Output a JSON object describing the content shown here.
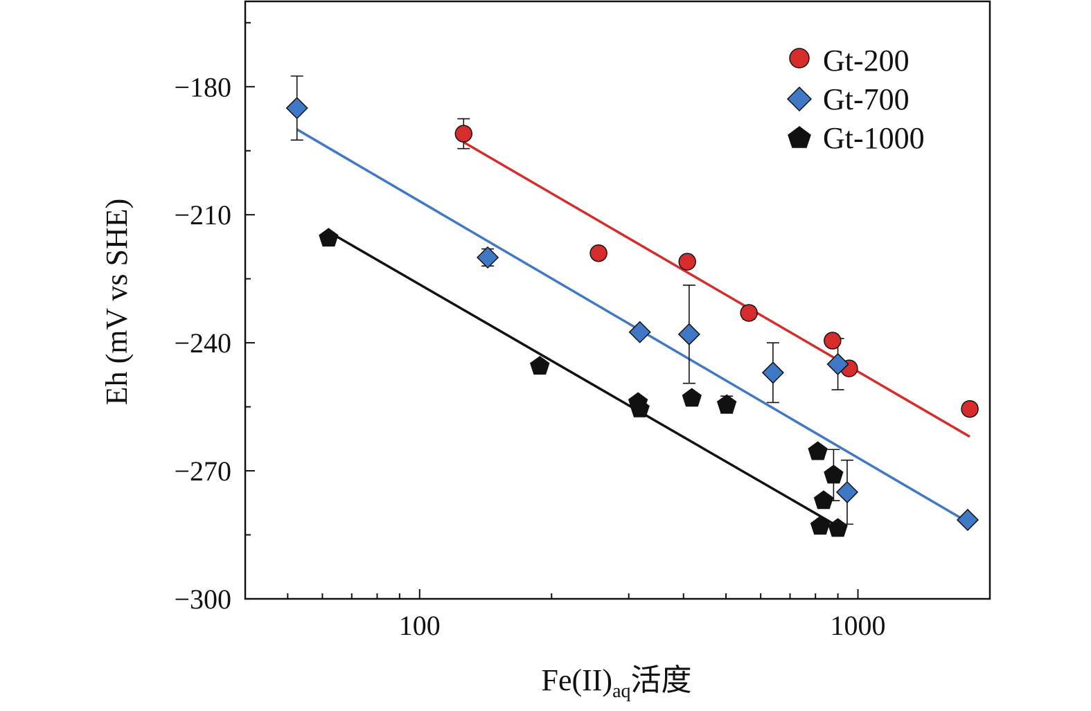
{
  "chart_data": {
    "type": "scatter",
    "x_scale": "log",
    "xlabel": {
      "main": "Fe(II)",
      "sub": "aq",
      "suffix": "活度"
    },
    "ylabel": "Eh (mV vs SHE)",
    "xlim": [
      40,
      2000
    ],
    "ylim": [
      -300,
      -160
    ],
    "x_ticks": [
      {
        "value": 100,
        "label": "100"
      },
      {
        "value": 1000,
        "label": "1000"
      }
    ],
    "y_ticks": [
      {
        "value": -180,
        "label": "−180"
      },
      {
        "value": -210,
        "label": "−210"
      },
      {
        "value": -240,
        "label": "−240"
      },
      {
        "value": -270,
        "label": "−270"
      },
      {
        "value": -300,
        "label": "−300"
      }
    ],
    "legend_position": "top-right",
    "series": [
      {
        "name": "Gt-200",
        "color": "#d62c2c",
        "marker": "circle",
        "points": [
          {
            "x": 126,
            "y": -191,
            "err": 3.5
          },
          {
            "x": 256,
            "y": -219,
            "err": 1
          },
          {
            "x": 408,
            "y": -221,
            "err": 1
          },
          {
            "x": 564,
            "y": -233,
            "err": 1.5
          },
          {
            "x": 875,
            "y": -239.5,
            "err": 1
          },
          {
            "x": 955,
            "y": -246,
            "err": 1
          },
          {
            "x": 1800,
            "y": -255.5,
            "err": 1
          }
        ],
        "fit": {
          "x": [
            126,
            1800
          ],
          "y": [
            -193,
            -262
          ]
        }
      },
      {
        "name": "Gt-700",
        "color": "#3f78c4",
        "marker": "diamond",
        "points": [
          {
            "x": 52.5,
            "y": -185,
            "err": 7.5
          },
          {
            "x": 143,
            "y": -220,
            "err": 2
          },
          {
            "x": 318,
            "y": -237.5,
            "err": 1
          },
          {
            "x": 412,
            "y": -238,
            "err": 11.5
          },
          {
            "x": 640,
            "y": -247,
            "err": 7
          },
          {
            "x": 900,
            "y": -245,
            "err": 6
          },
          {
            "x": 945,
            "y": -275,
            "err": 7.5
          },
          {
            "x": 1780,
            "y": -281.5,
            "err": 1
          }
        ],
        "fit": {
          "x": [
            52.5,
            1780
          ],
          "y": [
            -190,
            -282
          ]
        }
      },
      {
        "name": "Gt-1000",
        "color": "#111111",
        "marker": "pentagon",
        "points": [
          {
            "x": 62,
            "y": -215.5,
            "err": 1
          },
          {
            "x": 188,
            "y": -245.5,
            "err": 1
          },
          {
            "x": 315,
            "y": -254,
            "err": 1
          },
          {
            "x": 318,
            "y": -255.5,
            "err": 1
          },
          {
            "x": 418,
            "y": -253,
            "err": 1
          },
          {
            "x": 502,
            "y": -254.5,
            "err": 2
          },
          {
            "x": 810,
            "y": -265.5,
            "err": 1
          },
          {
            "x": 835,
            "y": -277,
            "err": 1
          },
          {
            "x": 820,
            "y": -283,
            "err": 1
          },
          {
            "x": 880,
            "y": -271,
            "err": 6
          },
          {
            "x": 900,
            "y": -283.5,
            "err": 1
          }
        ],
        "fit": {
          "x": [
            62,
            900
          ],
          "y": [
            -214,
            -283
          ]
        }
      }
    ]
  }
}
